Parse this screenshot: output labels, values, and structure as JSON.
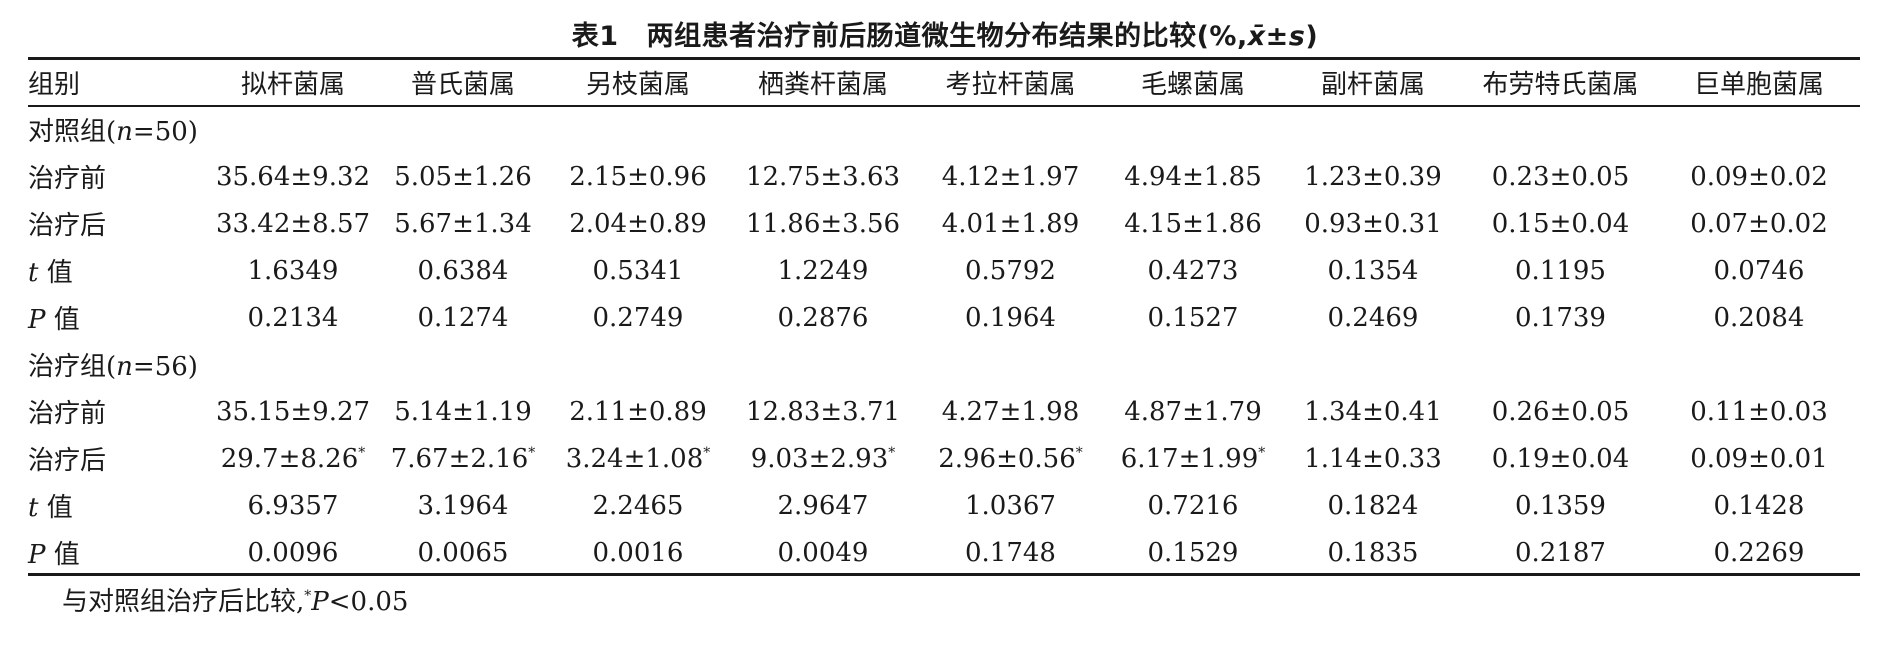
{
  "table_label": "表1",
  "table_title": "两组患者治疗前后肠道微生物分布结果的比较(%,x̄±s)",
  "headers": [
    "组别",
    "拟杆菌属",
    "普氏菌属",
    "另枝菌属",
    "栖粪杆菌属",
    "考拉杆菌属",
    "毛螺菌属",
    "副杆菌属",
    "布劳特氏菌属",
    "巨单胞菌属"
  ],
  "groups": [
    {
      "label": "对照组(n=50)",
      "rows": [
        {
          "label": "治疗前",
          "cells": [
            "35.64±9.32",
            "5.05±1.26",
            "2.15±0.96",
            "12.75±3.63",
            "4.12±1.97",
            "4.94±1.85",
            "1.23±0.39",
            "0.23±0.05",
            "0.09±0.02"
          ]
        },
        {
          "label": "治疗后",
          "cells": [
            "33.42±8.57",
            "5.67±1.34",
            "2.04±0.89",
            "11.86±3.56",
            "4.01±1.89",
            "4.15±1.86",
            "0.93±0.31",
            "0.15±0.04",
            "0.07±0.02"
          ]
        },
        {
          "label": "t 值",
          "cells": [
            "1.6349",
            "0.6384",
            "0.5341",
            "1.2249",
            "0.5792",
            "0.4273",
            "0.1354",
            "0.1195",
            "0.0746"
          ]
        },
        {
          "label": "P 值",
          "cells": [
            "0.2134",
            "0.1274",
            "0.2749",
            "0.2876",
            "0.1964",
            "0.1527",
            "0.2469",
            "0.1739",
            "0.2084"
          ]
        }
      ]
    },
    {
      "label": "治疗组(n=56)",
      "rows": [
        {
          "label": "治疗前",
          "cells": [
            "35.15±9.27",
            "5.14±1.19",
            "2.11±0.89",
            "12.83±3.71",
            "4.27±1.98",
            "4.87±1.79",
            "1.34±0.41",
            "0.26±0.05",
            "0.11±0.03"
          ]
        },
        {
          "label": "治疗后",
          "cells": [
            "29.7±8.26*",
            "7.67±2.16*",
            "3.24±1.08*",
            "9.03±2.93*",
            "2.96±0.56*",
            "6.17±1.99*",
            "1.14±0.33",
            "0.19±0.04",
            "0.09±0.01"
          ]
        },
        {
          "label": "t 值",
          "cells": [
            "6.9357",
            "3.1964",
            "2.2465",
            "2.9647",
            "1.0367",
            "0.7216",
            "0.1824",
            "0.1359",
            "0.1428"
          ]
        },
        {
          "label": "P 值",
          "cells": [
            "0.0096",
            "0.0065",
            "0.0016",
            "0.0049",
            "0.1748",
            "0.1529",
            "0.1835",
            "0.2187",
            "0.2269"
          ]
        }
      ]
    }
  ],
  "footnote": "与对照组治疗后比较,*P<0.05"
}
